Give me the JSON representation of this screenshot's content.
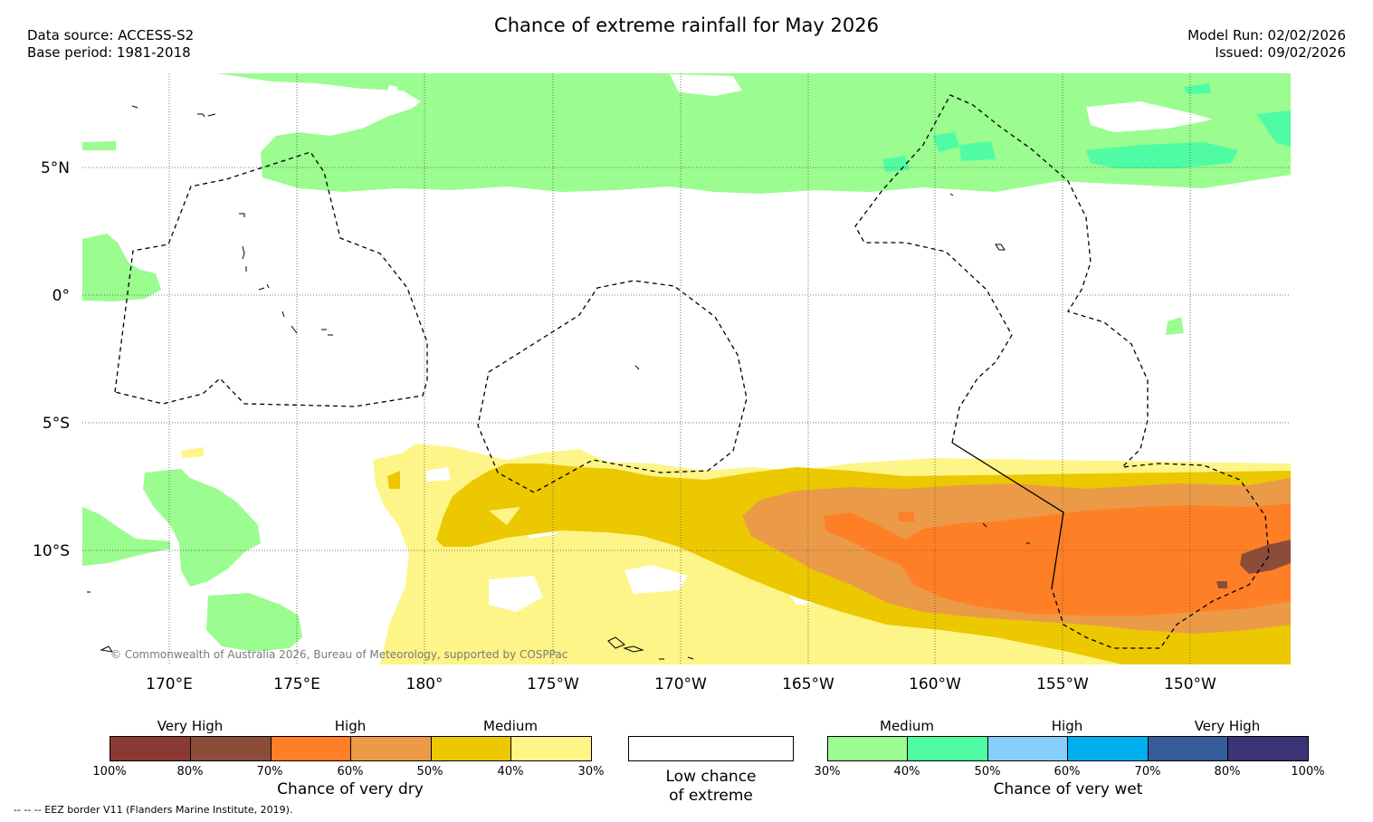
{
  "title": "Chance of extreme rainfall for May 2026",
  "header": {
    "data_source": "Data source: ACCESS-S2",
    "base_period": "Base period: 1981-2018",
    "model_run": "Model Run: 02/02/2026",
    "issued": "Issued: 09/02/2026"
  },
  "map": {
    "lat_labels": [
      "5°N",
      "0°",
      "5°S",
      "10°S"
    ],
    "lon_labels": [
      "170°E",
      "175°E",
      "180°",
      "175°W",
      "170°W",
      "165°W",
      "160°W",
      "155°W",
      "150°W"
    ],
    "copyright": "© Commonwealth of Australia 2026, Bureau of Meteorology, supported by COSPPac"
  },
  "legend": {
    "dry": {
      "title": "Chance of very dry",
      "categories": [
        "Very High",
        "High",
        "Medium"
      ],
      "ticks": [
        "100%",
        "80%",
        "70%",
        "60%",
        "50%",
        "40%",
        "30%"
      ],
      "colors": [
        "#8b3a33",
        "#8b4c3a",
        "#ff7f27",
        "#eb9b47",
        "#ecc800",
        "#fdf587"
      ]
    },
    "low": {
      "title_line1": "Low chance",
      "title_line2": "of extreme",
      "color": "#ffffff"
    },
    "wet": {
      "title": "Chance of very wet",
      "categories": [
        "Medium",
        "High",
        "Very High"
      ],
      "ticks": [
        "30%",
        "40%",
        "50%",
        "60%",
        "70%",
        "80%",
        "100%"
      ],
      "colors": [
        "#9bfc8f",
        "#4ffca4",
        "#87cefa",
        "#00b0ee",
        "#345d9a",
        "#3b3575"
      ]
    }
  },
  "footnote": "--  --  -- EEZ border V11 (Flanders Marine Institute, 2019)."
}
